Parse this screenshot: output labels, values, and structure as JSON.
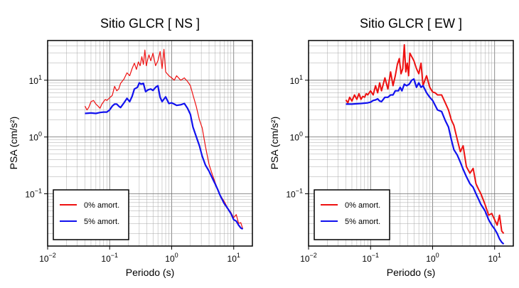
{
  "chart_data": [
    {
      "type": "line",
      "title": "Sitio GLCR [ NS ]",
      "xlabel": "Periodo (s)",
      "ylabel": "PSA (cm/s²)",
      "xscale": "log",
      "yscale": "log",
      "xlim": [
        0.01,
        20
      ],
      "ylim": [
        0.012,
        50
      ],
      "grid": true,
      "legend_position": "bottom-left",
      "x_ticks": [
        {
          "v": 0.01,
          "b": "10",
          "e": "−2"
        },
        {
          "v": 0.1,
          "b": "10",
          "e": "−1"
        },
        {
          "v": 1,
          "b": "10",
          "e": "0"
        },
        {
          "v": 10,
          "b": "10",
          "e": "1"
        }
      ],
      "y_ticks": [
        {
          "v": 0.1,
          "b": "10",
          "e": "−1"
        },
        {
          "v": 1,
          "b": "10",
          "e": "0"
        },
        {
          "v": 10,
          "b": "10",
          "e": "1"
        }
      ],
      "series": [
        {
          "name": "0% amort.",
          "color": "#ee1111",
          "width": 1.2,
          "x": [
            0.04,
            0.043,
            0.046,
            0.05,
            0.055,
            0.06,
            0.065,
            0.07,
            0.075,
            0.08,
            0.085,
            0.09,
            0.1,
            0.11,
            0.12,
            0.13,
            0.14,
            0.15,
            0.17,
            0.19,
            0.21,
            0.23,
            0.25,
            0.27,
            0.29,
            0.31,
            0.33,
            0.35,
            0.37,
            0.39,
            0.41,
            0.43,
            0.46,
            0.5,
            0.55,
            0.6,
            0.65,
            0.7,
            0.75,
            0.8,
            0.9,
            1.0,
            1.1,
            1.2,
            1.4,
            1.6,
            1.8,
            2.0,
            2.2,
            2.5,
            2.8,
            3.1,
            3.5,
            4.0,
            4.5,
            5,
            5.5,
            6,
            7,
            8,
            9,
            10,
            11,
            12,
            13,
            14
          ],
          "y": [
            3.5,
            3.0,
            3.3,
            4.2,
            4.4,
            3.8,
            3.5,
            3.2,
            3.8,
            4.2,
            4.6,
            4.4,
            4.9,
            5.4,
            7.8,
            6.5,
            7.0,
            8.8,
            10.5,
            13.5,
            12.0,
            16.0,
            20.0,
            15.5,
            21.0,
            18.0,
            26.0,
            19.0,
            34.0,
            18.0,
            23.0,
            28.0,
            22.0,
            30.0,
            18.0,
            22.0,
            32.0,
            16.0,
            35.0,
            14.0,
            12.0,
            11.0,
            10.0,
            12.0,
            10.0,
            11.0,
            9.5,
            8.0,
            5.5,
            3.4,
            2.0,
            1.45,
            0.68,
            0.33,
            0.22,
            0.16,
            0.12,
            0.095,
            0.074,
            0.056,
            0.047,
            0.038,
            0.043,
            0.03,
            0.031,
            0.024
          ]
        },
        {
          "name": "5% amort.",
          "color": "#1111ee",
          "width": 2.2,
          "x": [
            0.04,
            0.05,
            0.06,
            0.07,
            0.08,
            0.09,
            0.1,
            0.11,
            0.12,
            0.13,
            0.14,
            0.15,
            0.17,
            0.19,
            0.21,
            0.23,
            0.25,
            0.28,
            0.3,
            0.32,
            0.35,
            0.38,
            0.42,
            0.46,
            0.5,
            0.55,
            0.6,
            0.65,
            0.7,
            0.8,
            0.9,
            1.0,
            1.1,
            1.2,
            1.4,
            1.6,
            1.8,
            2.0,
            2.2,
            2.5,
            2.8,
            3.1,
            3.5,
            4.0,
            4.5,
            5,
            5.5,
            6,
            7,
            8,
            9,
            10,
            11,
            12,
            13,
            14
          ],
          "y": [
            2.6,
            2.65,
            2.6,
            2.7,
            2.75,
            2.75,
            3.0,
            3.5,
            3.8,
            3.8,
            3.5,
            3.3,
            4.0,
            4.8,
            4.2,
            5.2,
            7.0,
            7.5,
            9.0,
            8.5,
            8.8,
            6.3,
            6.8,
            7.0,
            6.6,
            7.5,
            8.0,
            5.0,
            4.2,
            5.1,
            3.9,
            4.0,
            3.8,
            3.6,
            3.7,
            3.9,
            3.2,
            2.5,
            1.5,
            1.0,
            0.7,
            0.46,
            0.32,
            0.25,
            0.19,
            0.15,
            0.12,
            0.095,
            0.068,
            0.055,
            0.045,
            0.035,
            0.033,
            0.028,
            0.025,
            0.024
          ]
        }
      ]
    },
    {
      "type": "line",
      "title": "Sitio GLCR [ EW ]",
      "xlabel": "Periodo (s)",
      "ylabel": "PSA (cm/s²)",
      "xscale": "log",
      "yscale": "log",
      "xlim": [
        0.01,
        20
      ],
      "ylim": [
        0.012,
        50
      ],
      "grid": true,
      "legend_position": "bottom-left",
      "x_ticks": [
        {
          "v": 0.01,
          "b": "10",
          "e": "−2"
        },
        {
          "v": 0.1,
          "b": "10",
          "e": "−1"
        },
        {
          "v": 1,
          "b": "10",
          "e": "0"
        },
        {
          "v": 10,
          "b": "10",
          "e": "1"
        }
      ],
      "y_ticks": [
        {
          "v": 0.1,
          "b": "10",
          "e": "−1"
        },
        {
          "v": 1,
          "b": "10",
          "e": "0"
        },
        {
          "v": 10,
          "b": "10",
          "e": "1"
        }
      ],
      "series": [
        {
          "name": "0% amort.",
          "color": "#ee1111",
          "width": 2.0,
          "x": [
            0.04,
            0.043,
            0.046,
            0.05,
            0.055,
            0.06,
            0.065,
            0.07,
            0.075,
            0.08,
            0.085,
            0.09,
            0.1,
            0.11,
            0.12,
            0.13,
            0.14,
            0.15,
            0.17,
            0.19,
            0.21,
            0.23,
            0.25,
            0.27,
            0.29,
            0.31,
            0.33,
            0.35,
            0.37,
            0.39,
            0.41,
            0.43,
            0.46,
            0.5,
            0.55,
            0.6,
            0.65,
            0.7,
            0.75,
            0.8,
            0.9,
            1.0,
            1.1,
            1.2,
            1.4,
            1.6,
            1.8,
            2.0,
            2.2,
            2.5,
            2.8,
            3.1,
            3.5,
            4.0,
            4.5,
            5,
            5.5,
            6,
            7,
            8,
            9,
            10,
            11,
            12,
            13,
            14
          ],
          "y": [
            4.5,
            4.0,
            5.0,
            4.3,
            5.5,
            4.6,
            5.8,
            4.6,
            5.2,
            5.0,
            5.8,
            5.5,
            6.5,
            5.5,
            8.0,
            6.0,
            9.0,
            6.5,
            11.0,
            7.0,
            14.0,
            8.0,
            12.0,
            19.0,
            24.0,
            13.0,
            16.0,
            42.0,
            14.0,
            20.0,
            12.0,
            30.0,
            26.0,
            22.0,
            16.0,
            13.0,
            20.0,
            8.0,
            10.0,
            12.0,
            7.5,
            6.2,
            6.0,
            5.5,
            5.5,
            4.0,
            3.0,
            2.0,
            1.6,
            0.9,
            0.55,
            0.7,
            0.3,
            0.23,
            0.28,
            0.15,
            0.12,
            0.1,
            0.065,
            0.042,
            0.045,
            0.035,
            0.028,
            0.042,
            0.022,
            0.02
          ]
        },
        {
          "name": "5% amort.",
          "color": "#1111ee",
          "width": 2.2,
          "x": [
            0.04,
            0.05,
            0.06,
            0.07,
            0.08,
            0.09,
            0.1,
            0.11,
            0.12,
            0.13,
            0.14,
            0.15,
            0.17,
            0.19,
            0.21,
            0.23,
            0.25,
            0.28,
            0.3,
            0.32,
            0.35,
            0.38,
            0.42,
            0.46,
            0.5,
            0.55,
            0.6,
            0.65,
            0.7,
            0.8,
            0.9,
            1.0,
            1.1,
            1.2,
            1.4,
            1.6,
            1.8,
            2.0,
            2.2,
            2.5,
            2.8,
            3.1,
            3.5,
            4.0,
            4.5,
            5,
            5.5,
            6,
            7,
            8,
            9,
            10,
            11,
            12,
            13,
            14
          ],
          "y": [
            3.8,
            3.8,
            3.85,
            3.9,
            3.95,
            4.0,
            4.1,
            4.4,
            4.5,
            4.7,
            4.3,
            4.2,
            5.0,
            5.0,
            5.5,
            5.5,
            6.5,
            6.5,
            7.5,
            6.5,
            8.5,
            8.0,
            8.5,
            10.0,
            10.5,
            7.5,
            9.0,
            7.5,
            8.0,
            6.0,
            5.0,
            4.4,
            3.6,
            3.0,
            2.8,
            1.95,
            1.5,
            0.9,
            0.6,
            0.48,
            0.36,
            0.27,
            0.2,
            0.15,
            0.13,
            0.1,
            0.08,
            0.065,
            0.05,
            0.035,
            0.028,
            0.024,
            0.02,
            0.016,
            0.014,
            0.013
          ]
        }
      ]
    }
  ]
}
